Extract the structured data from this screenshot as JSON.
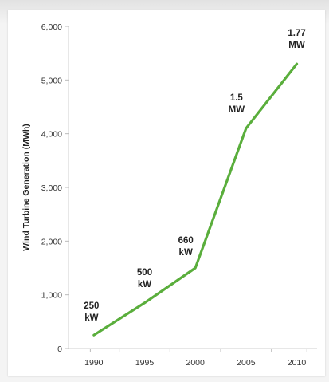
{
  "chart_data": {
    "type": "line",
    "title": "",
    "xlabel": "",
    "ylabel": "Wind Turbine Generation (MWh)",
    "x": [
      1990,
      1995,
      2000,
      2005,
      2010
    ],
    "xticks": [
      "1990",
      "1995",
      "2000",
      "2005",
      "2010"
    ],
    "yticks": [
      "0",
      "1,000",
      "2,000",
      "3,000",
      "4,000",
      "5,000",
      "6,000"
    ],
    "ytick_values": [
      0,
      1000,
      2000,
      3000,
      4000,
      5000,
      6000
    ],
    "xlim": [
      1987.5,
      2012
    ],
    "ylim": [
      0,
      6000
    ],
    "grid": false,
    "series": [
      {
        "values": [
          250,
          850,
          1500,
          4100,
          5300
        ],
        "color": "#5aae3c"
      }
    ],
    "annotations": [
      {
        "x": 1990,
        "lines": [
          "250",
          "kW"
        ]
      },
      {
        "x": 1995,
        "lines": [
          "500",
          "kW"
        ]
      },
      {
        "x": 2000,
        "lines": [
          "660",
          "kW"
        ]
      },
      {
        "x": 2005,
        "lines": [
          "1.5",
          "MW"
        ]
      },
      {
        "x": 2010,
        "lines": [
          "1.77",
          "MW"
        ]
      }
    ]
  }
}
